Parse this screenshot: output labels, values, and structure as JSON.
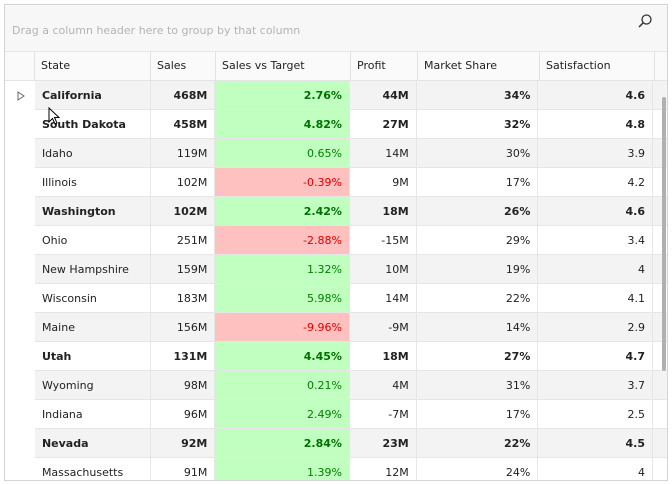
{
  "group_panel": {
    "hint": "Drag a column header here to group by that column",
    "search_icon": "search-icon"
  },
  "columns": [
    "State",
    "Sales",
    "Sales vs Target",
    "Profit",
    "Market Share",
    "Satisfaction"
  ],
  "colors": {
    "positive_bg": "#c0ffc0",
    "negative_bg": "#ffc0c0",
    "positive_text": "#008000",
    "negative_text": "#e00000"
  },
  "rows": [
    {
      "state": "California",
      "sales": "468M",
      "svt": "2.76%",
      "profit": "44M",
      "share": "34%",
      "sat": "4.6",
      "bold": true,
      "current": true
    },
    {
      "state": "South Dakota",
      "sales": "458M",
      "svt": "4.82%",
      "profit": "27M",
      "share": "32%",
      "sat": "4.8",
      "bold": true
    },
    {
      "state": "Idaho",
      "sales": "119M",
      "svt": "0.65%",
      "profit": "14M",
      "share": "30%",
      "sat": "3.9"
    },
    {
      "state": "Illinois",
      "sales": "102M",
      "svt": "-0.39%",
      "profit": "9M",
      "share": "17%",
      "sat": "4.2"
    },
    {
      "state": "Washington",
      "sales": "102M",
      "svt": "2.42%",
      "profit": "18M",
      "share": "26%",
      "sat": "4.6",
      "bold": true
    },
    {
      "state": "Ohio",
      "sales": "251M",
      "svt": "-2.88%",
      "profit": "-15M",
      "share": "29%",
      "sat": "3.4"
    },
    {
      "state": "New Hampshire",
      "sales": "159M",
      "svt": "1.32%",
      "profit": "10M",
      "share": "19%",
      "sat": "4"
    },
    {
      "state": "Wisconsin",
      "sales": "183M",
      "svt": "5.98%",
      "profit": "14M",
      "share": "22%",
      "sat": "4.1"
    },
    {
      "state": "Maine",
      "sales": "156M",
      "svt": "-9.96%",
      "profit": "-9M",
      "share": "14%",
      "sat": "2.9"
    },
    {
      "state": "Utah",
      "sales": "131M",
      "svt": "4.45%",
      "profit": "18M",
      "share": "27%",
      "sat": "4.7",
      "bold": true
    },
    {
      "state": "Wyoming",
      "sales": "98M",
      "svt": "0.21%",
      "profit": "4M",
      "share": "31%",
      "sat": "3.7"
    },
    {
      "state": "Indiana",
      "sales": "96M",
      "svt": "2.49%",
      "profit": "-7M",
      "share": "17%",
      "sat": "2.5"
    },
    {
      "state": "Nevada",
      "sales": "92M",
      "svt": "2.84%",
      "profit": "23M",
      "share": "22%",
      "sat": "4.5",
      "bold": true
    },
    {
      "state": "Massachusetts",
      "sales": "91M",
      "svt": "1.39%",
      "profit": "12M",
      "share": "24%",
      "sat": "4"
    }
  ]
}
